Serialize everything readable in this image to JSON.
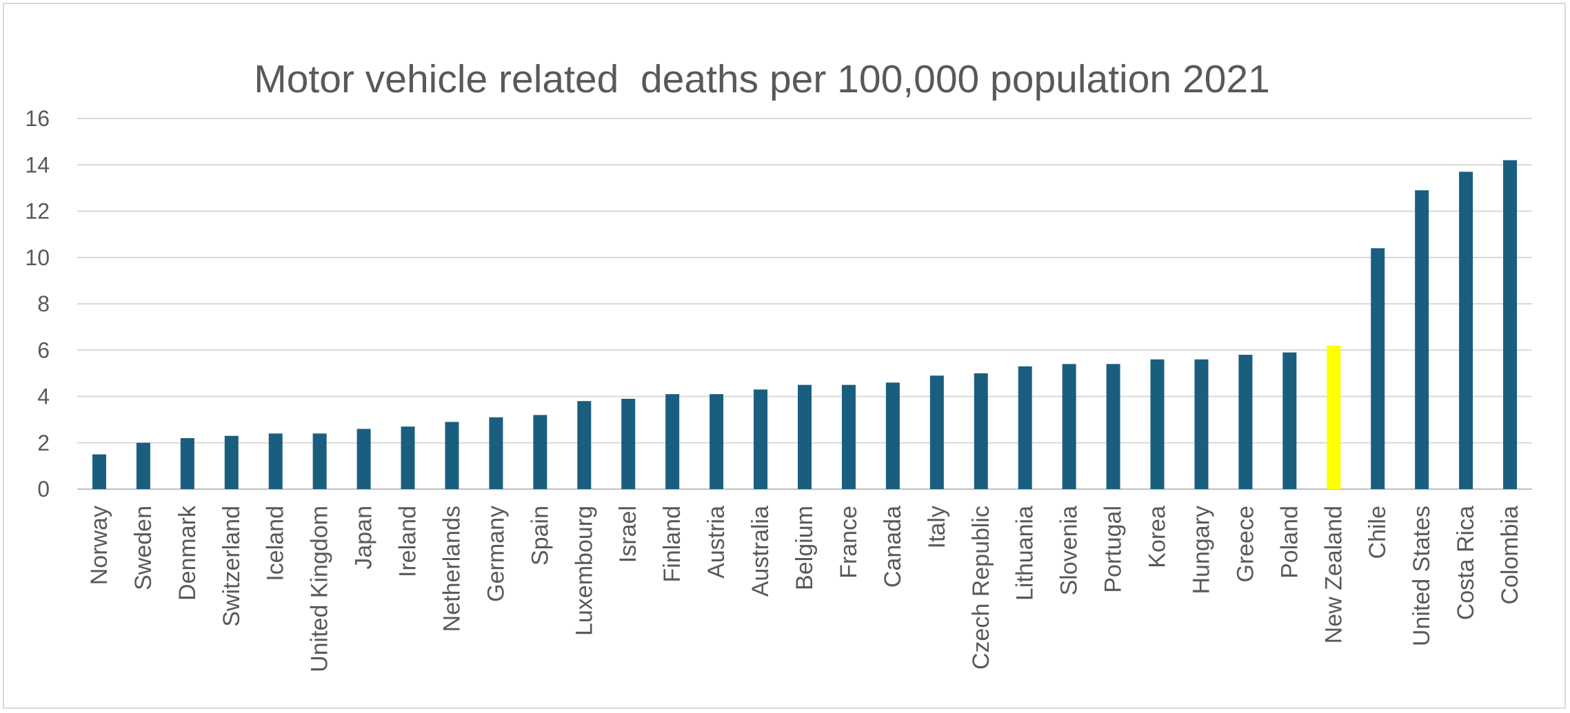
{
  "chart_data": {
    "type": "bar",
    "title": "Motor vehicle related  deaths per 100,000 population 2021",
    "xlabel": "",
    "ylabel": "",
    "ylim": [
      0,
      16
    ],
    "yticks": [
      0,
      2,
      4,
      6,
      8,
      10,
      12,
      14,
      16
    ],
    "grid": true,
    "legend": "none",
    "categories": [
      "Norway",
      "Sweden",
      "Denmark",
      "Switzerland",
      "Iceland",
      "United Kingdom",
      "Japan",
      "Ireland",
      "Netherlands",
      "Germany",
      "Spain",
      "Luxembourg",
      "Israel",
      "Finland",
      "Austria",
      "Australia",
      "Belgium",
      "France",
      "Canada",
      "Italy",
      "Czech Republic",
      "Lithuania",
      "Slovenia",
      "Portugal",
      "Korea",
      "Hungary",
      "Greece",
      "Poland",
      "New Zealand",
      "Chile",
      "United States",
      "Costa Rica",
      "Colombia"
    ],
    "values": [
      1.5,
      2.0,
      2.2,
      2.3,
      2.4,
      2.4,
      2.6,
      2.7,
      2.9,
      3.1,
      3.2,
      3.8,
      3.9,
      4.1,
      4.1,
      4.3,
      4.5,
      4.5,
      4.6,
      4.9,
      5.0,
      5.3,
      5.4,
      5.4,
      5.6,
      5.6,
      5.8,
      5.9,
      6.2,
      10.4,
      12.9,
      13.7,
      14.2
    ],
    "highlight_category": "New Zealand",
    "colors": {
      "bar": "#1a5e7f",
      "highlight": "#ffff00",
      "grid": "#d9d9d9",
      "axis": "#bfbfbf",
      "text": "#595959"
    }
  }
}
